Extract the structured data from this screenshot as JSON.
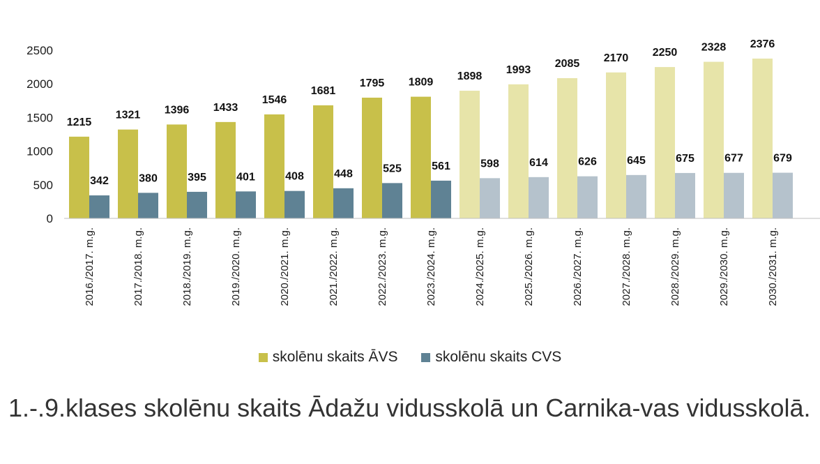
{
  "caption": "1.-.9.klases skolēnu skaits Ādažu vidusskolā un Carnika-vas vidusskolā.",
  "chart_data": {
    "type": "bar",
    "title": "",
    "xlabel": "",
    "ylabel": "",
    "ylim": [
      0,
      2500
    ],
    "yticks": [
      0,
      500,
      1000,
      1500,
      2000,
      2500
    ],
    "legend_position": "bottom",
    "grid": false,
    "projected_from_index": 8,
    "categories": [
      "2016./2017. m.g.",
      "2017./2018. m.g.",
      "2018./2019. m.g.",
      "2019./2020. m.g.",
      "2020./2021. m.g.",
      "2021./2022. m.g.",
      "2022./2023. m.g.",
      "2023./2024. m.g.",
      "2024./2025. m.g.",
      "2025./2026. m.g.",
      "2026./2027. m.g.",
      "2027./2028. m.g.",
      "2028./2029. m.g.",
      "2029./2030. m.g.",
      "2030./2031. m.g."
    ],
    "series": [
      {
        "name": "skolēnu skaits ĀVS",
        "color": "#c8c04a",
        "color_projected": "#e7e4a9",
        "values": [
          1215,
          1321,
          1396,
          1433,
          1546,
          1681,
          1795,
          1809,
          1898,
          1993,
          2085,
          2170,
          2250,
          2328,
          2376
        ]
      },
      {
        "name": "skolēnu skaits CVS",
        "color": "#5f8294",
        "color_projected": "#b5c2cc",
        "values": [
          342,
          380,
          395,
          401,
          408,
          448,
          525,
          561,
          598,
          614,
          626,
          645,
          675,
          677,
          679
        ]
      }
    ]
  }
}
